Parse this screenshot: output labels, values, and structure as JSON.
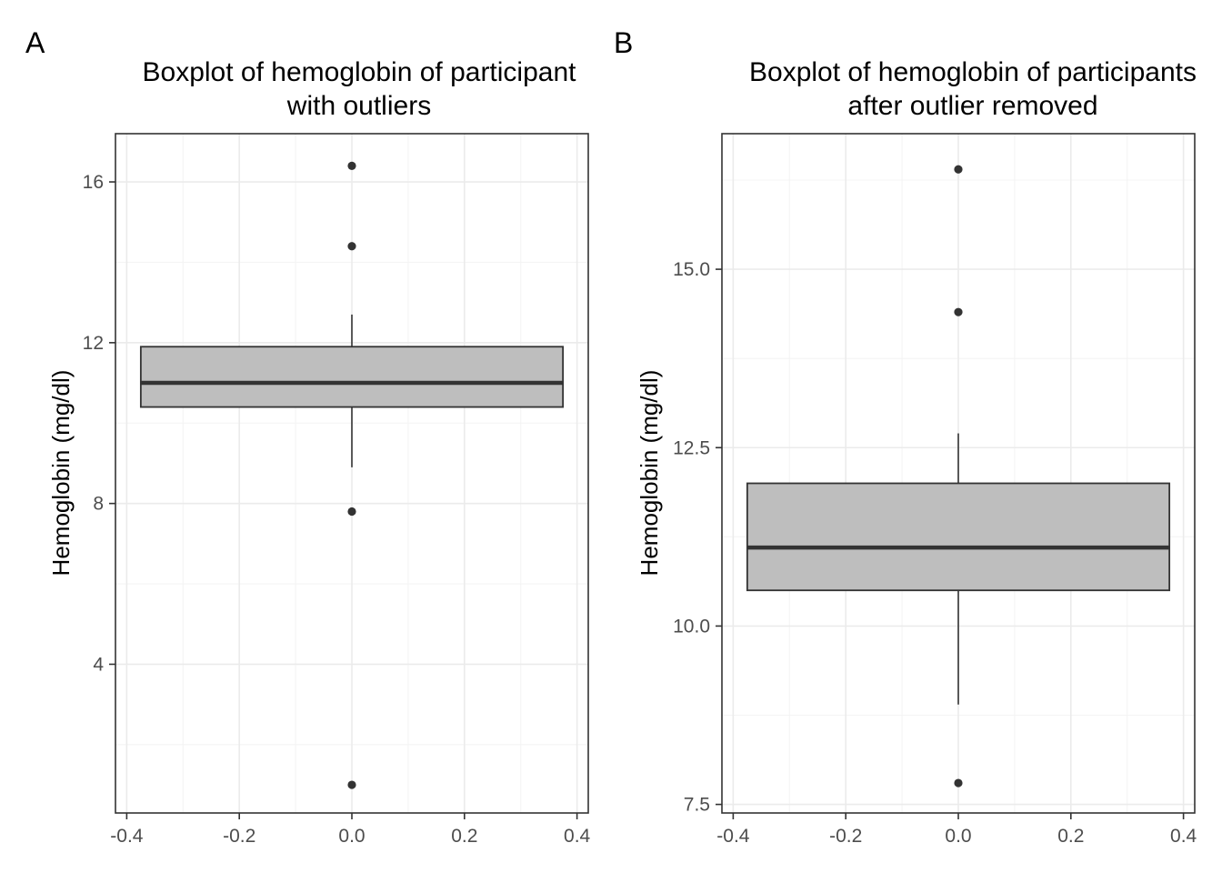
{
  "chart_data": [
    {
      "type": "box",
      "panel_tag": "A",
      "title_lines": [
        "Boxplot of hemoglobin of participant",
        "with outliers"
      ],
      "xlabel": "",
      "ylabel": "Hemoglobin (mg/dl)",
      "xlim": [
        -0.42,
        0.42
      ],
      "ylim": [
        0.3,
        17.2
      ],
      "x_ticks": [
        -0.4,
        -0.2,
        0.0,
        0.2,
        0.4
      ],
      "x_tick_labels": [
        "-0.4",
        "-0.2",
        "0.0",
        "0.2",
        "0.4"
      ],
      "y_ticks": [
        4,
        8,
        12,
        16
      ],
      "y_tick_labels": [
        "4",
        "8",
        "12",
        "16"
      ],
      "grid": true,
      "box": {
        "x_left": -0.375,
        "x_right": 0.375,
        "x_center": 0,
        "whisker_low": 8.9,
        "q1": 10.4,
        "median": 11.0,
        "q3": 11.9,
        "whisker_high": 12.7,
        "outliers": [
          16.4,
          14.4,
          7.8,
          1.0
        ],
        "fill": "#bebebe"
      }
    },
    {
      "type": "box",
      "panel_tag": "B",
      "title_lines": [
        "Boxplot of hemoglobin of participants",
        "after outlier removed"
      ],
      "xlabel": "",
      "ylabel": "Hemoglobin (mg/dl)",
      "xlim": [
        -0.42,
        0.42
      ],
      "ylim": [
        7.38,
        16.9
      ],
      "x_ticks": [
        -0.4,
        -0.2,
        0.0,
        0.2,
        0.4
      ],
      "x_tick_labels": [
        "-0.4",
        "-0.2",
        "0.0",
        "0.2",
        "0.4"
      ],
      "y_ticks": [
        7.5,
        10.0,
        12.5,
        15.0
      ],
      "y_tick_labels": [
        "7.5",
        "10.0",
        "12.5",
        "15.0"
      ],
      "grid": true,
      "box": {
        "x_left": -0.375,
        "x_right": 0.375,
        "x_center": 0,
        "whisker_low": 8.9,
        "q1": 10.5,
        "median": 11.1,
        "q3": 12.0,
        "whisker_high": 12.7,
        "outliers": [
          16.4,
          14.4,
          7.8
        ],
        "fill": "#bebebe"
      }
    }
  ]
}
